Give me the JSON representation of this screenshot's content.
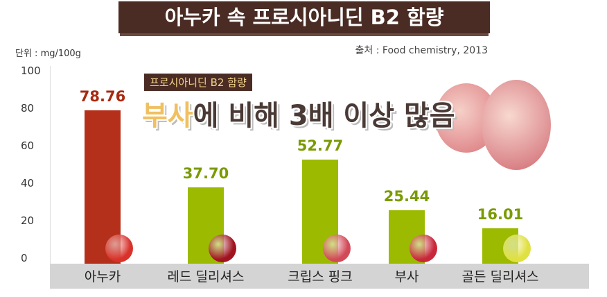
{
  "title": "아누카 속 프로시아니딘 B2 함량",
  "source": "출처 : Food chemistry, 2013",
  "unit": "단위 : mg/100g",
  "badge": "프로시아니딘 B2 함량",
  "headline": {
    "highlight": "부사",
    "rest": "에 비해 3배 이상 많음"
  },
  "colors": {
    "highlight_bar": "#b5301a",
    "bar": "#9cba00",
    "title_bg": "#4a2c24"
  },
  "chart_data": {
    "type": "bar",
    "categories": [
      "아누카",
      "레드 딜리셔스",
      "크립스 핑크",
      "부사",
      "골든 딜리셔스"
    ],
    "values": [
      78.76,
      37.7,
      52.77,
      25.44,
      16.01
    ],
    "labels": [
      "78.76",
      "37.70",
      "52.77",
      "25.44",
      "16.01"
    ],
    "yticks": [
      "0",
      "20",
      "40",
      "60",
      "80",
      "100"
    ],
    "ylim": [
      0,
      100
    ],
    "grid": false
  }
}
